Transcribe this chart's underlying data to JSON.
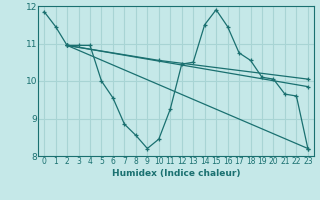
{
  "xlabel": "Humidex (Indice chaleur)",
  "xlim": [
    -0.5,
    23.5
  ],
  "ylim": [
    8,
    12
  ],
  "yticks": [
    8,
    9,
    10,
    11,
    12
  ],
  "xticks": [
    0,
    1,
    2,
    3,
    4,
    5,
    6,
    7,
    8,
    9,
    10,
    11,
    12,
    13,
    14,
    15,
    16,
    17,
    18,
    19,
    20,
    21,
    22,
    23
  ],
  "bg_color": "#c5e8e8",
  "grid_color": "#a8d4d4",
  "line_color": "#1a7070",
  "lines": [
    {
      "x": [
        0,
        1,
        2,
        3,
        4,
        5,
        6,
        7,
        8,
        9,
        10,
        11,
        12,
        13,
        14,
        15,
        16,
        17,
        18,
        19,
        20,
        21,
        22,
        23
      ],
      "y": [
        11.85,
        11.45,
        10.95,
        10.95,
        10.95,
        10.0,
        9.55,
        8.85,
        8.55,
        8.2,
        8.45,
        9.25,
        10.45,
        10.5,
        11.5,
        11.9,
        11.45,
        10.75,
        10.55,
        10.1,
        10.05,
        9.65,
        9.6,
        8.2
      ]
    },
    {
      "x": [
        2,
        23
      ],
      "y": [
        10.95,
        8.2
      ]
    },
    {
      "x": [
        2,
        23
      ],
      "y": [
        10.95,
        9.85
      ]
    },
    {
      "x": [
        2,
        10,
        23
      ],
      "y": [
        10.95,
        10.55,
        10.05
      ]
    }
  ]
}
